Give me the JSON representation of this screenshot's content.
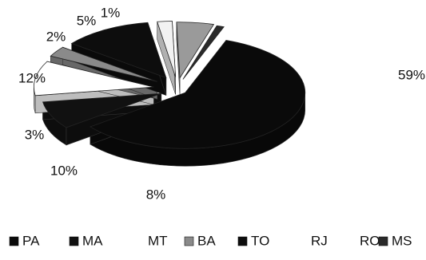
{
  "chart_data": {
    "type": "pie",
    "title": "",
    "three_d": true,
    "exploded": true,
    "legend_position": "bottom",
    "slices": [
      {
        "name": "PA",
        "value": 59,
        "label": "59%",
        "color": "#0a0a0a"
      },
      {
        "name": "MA",
        "value": 8,
        "label": "8%",
        "color": "#111111"
      },
      {
        "name": "MT",
        "value": 10,
        "label": "10%",
        "color": "#ffffff"
      },
      {
        "name": "BA",
        "value": 3,
        "label": "3%",
        "color": "#8a8a8a"
      },
      {
        "name": "TO",
        "value": 12,
        "label": "12%",
        "color": "#0d0d0d"
      },
      {
        "name": "RJ",
        "value": 2,
        "label": "2%",
        "color": "#f2f2f2"
      },
      {
        "name": "RO",
        "value": 5,
        "label": "5%",
        "color": "#9a9a9a"
      },
      {
        "name": "MS",
        "value": 1,
        "label": "1%",
        "color": "#2a2a2a"
      }
    ],
    "legend": [
      {
        "name": "PA",
        "show_marker": true,
        "color": "#0a0a0a"
      },
      {
        "name": "MA",
        "show_marker": true,
        "color": "#111111"
      },
      {
        "name": "MT",
        "show_marker": false,
        "color": "#ffffff"
      },
      {
        "name": "BA",
        "show_marker": true,
        "color": "#8a8a8a"
      },
      {
        "name": "TO",
        "show_marker": true,
        "color": "#0d0d0d"
      },
      {
        "name": "RJ",
        "show_marker": false,
        "color": "#f2f2f2"
      },
      {
        "name": "RO",
        "show_marker": false,
        "color": "#9a9a9a"
      },
      {
        "name": "MS",
        "show_marker": true,
        "color": "#2a2a2a"
      }
    ]
  }
}
